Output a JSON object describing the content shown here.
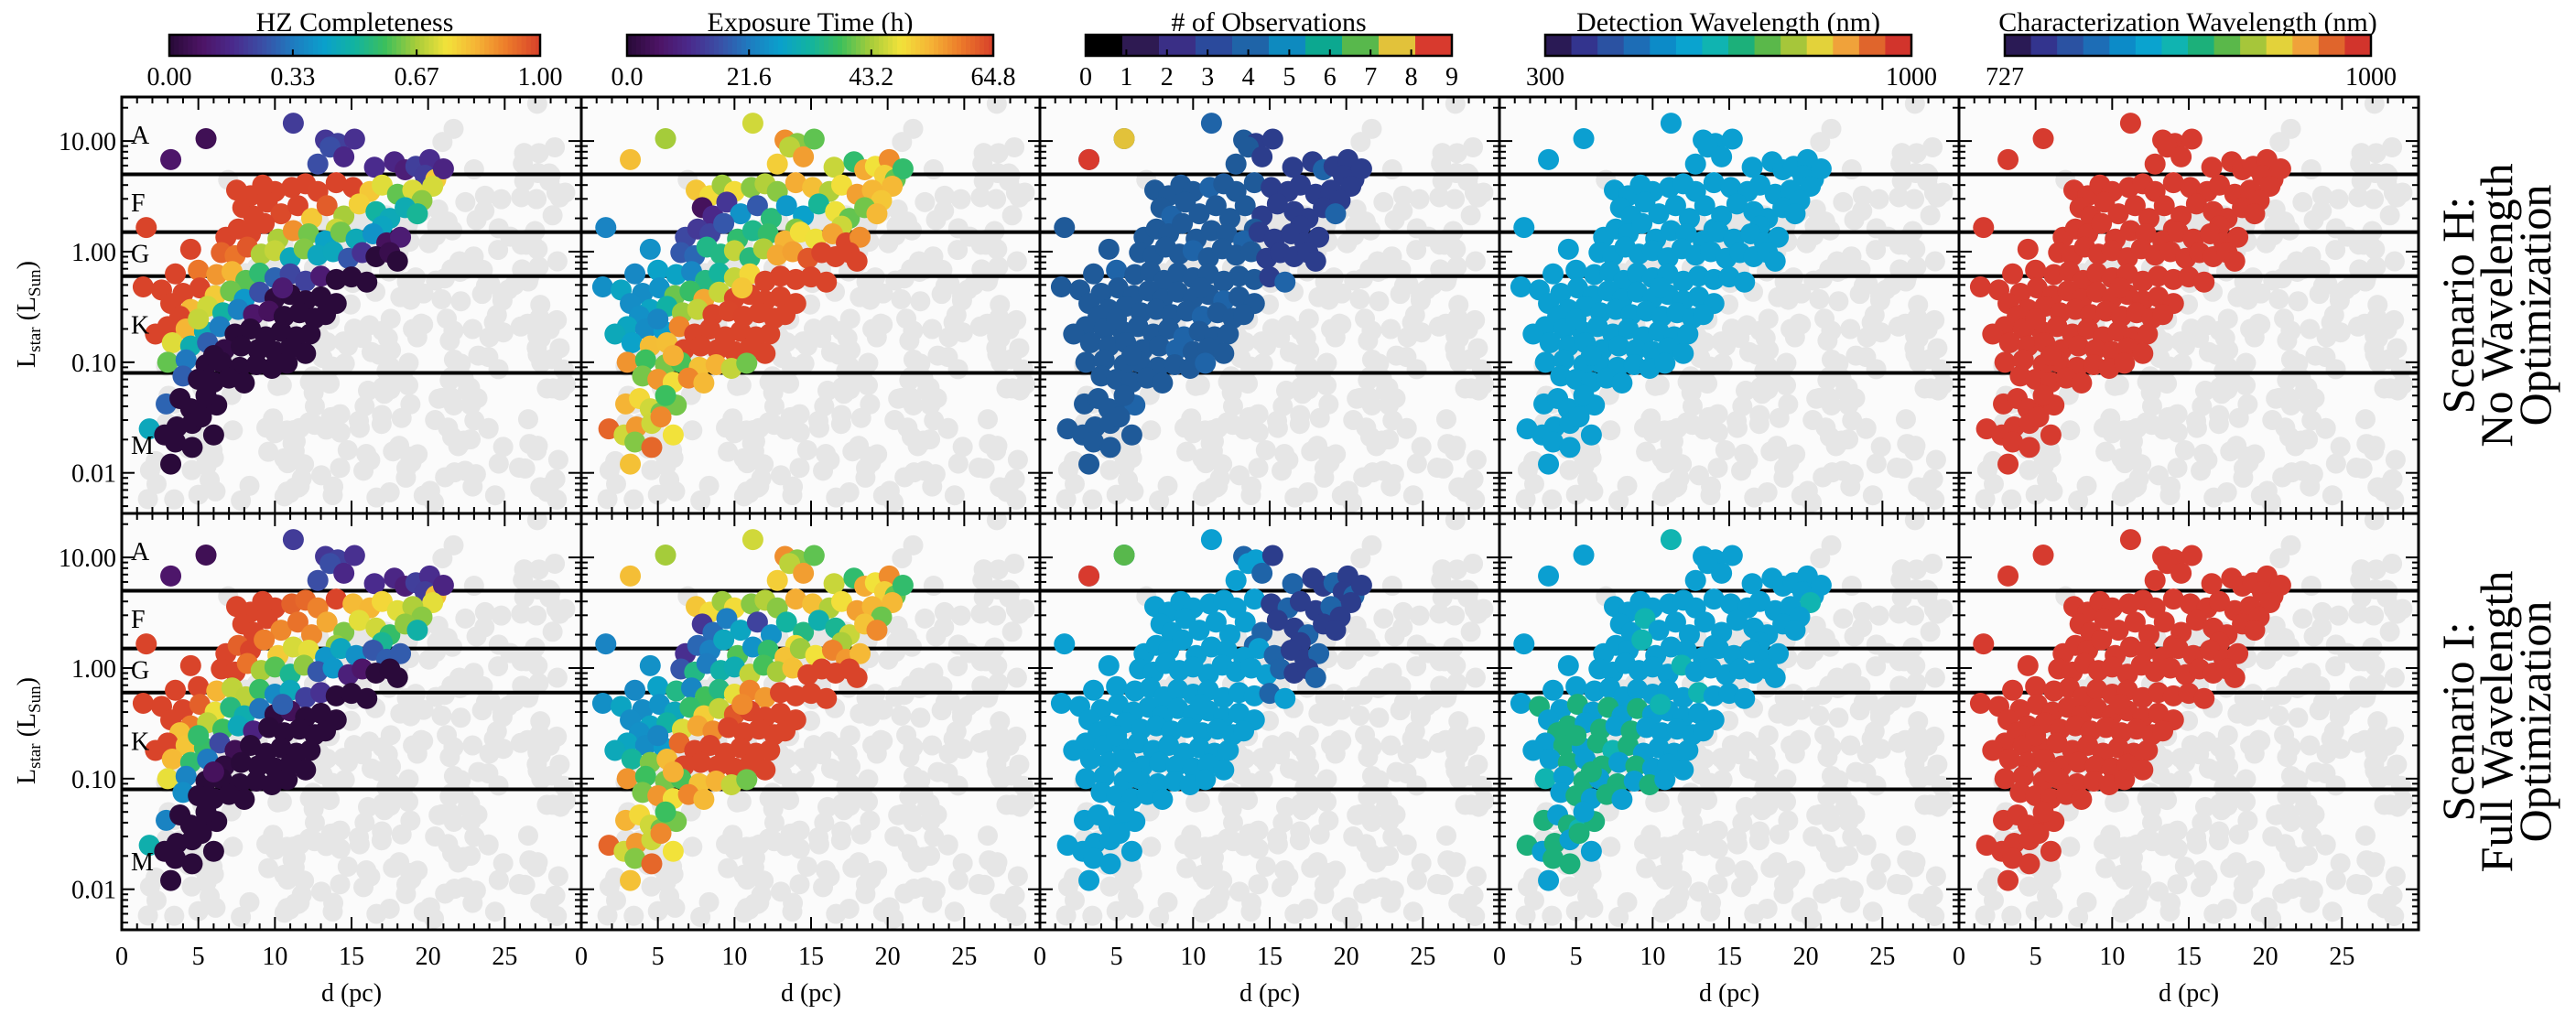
{
  "chart_data": {
    "type": "scatter",
    "x_axis": {
      "label": "d (pc)",
      "lim": [
        0,
        30
      ],
      "ticks": [
        0,
        5,
        10,
        15,
        20,
        25
      ]
    },
    "y_axis": {
      "label_main": "L",
      "label_sub1": "star",
      "label_mid": " (L",
      "label_sub2": "Sun",
      "label_end": ")",
      "scale": "log",
      "lim": [
        0.0043,
        25
      ],
      "ticks": [
        0.01,
        0.1,
        1.0,
        10.0
      ],
      "tick_labels": [
        "0.01",
        "0.10",
        "1.00",
        "10.00"
      ]
    },
    "spectral_boundaries": [
      5.0,
      1.5,
      0.6,
      0.08
    ],
    "spectral_labels": [
      {
        "text": "A",
        "lum": 11.5
      },
      {
        "text": "F",
        "lum": 2.8
      },
      {
        "text": "G",
        "lum": 0.97
      },
      {
        "text": "K",
        "lum": 0.22
      },
      {
        "text": "M",
        "lum": 0.018
      }
    ],
    "colorbars": [
      {
        "title": "HZ Completeness",
        "ticks": [
          "0.00",
          "0.33",
          "0.67",
          "1.00"
        ],
        "tick_pos": [
          0,
          0.333,
          0.667,
          1
        ],
        "colormap": "rainbow"
      },
      {
        "title": "Exposure Time (h)",
        "ticks": [
          "0.0",
          "21.6",
          "43.2",
          "64.8"
        ],
        "tick_pos": [
          0,
          0.333,
          0.667,
          1
        ],
        "colormap": "rainbow"
      },
      {
        "title": "# of Observations",
        "ticks": [
          "0",
          "1",
          "2",
          "3",
          "4",
          "5",
          "6",
          "7",
          "8",
          "9"
        ],
        "tick_pos": [
          0.0,
          0.111,
          0.222,
          0.333,
          0.444,
          0.556,
          0.667,
          0.778,
          0.889,
          1.0
        ],
        "colormap": "discrete10"
      },
      {
        "title": "Detection Wavelength (nm)",
        "ticks": [
          "300",
          "1000"
        ],
        "tick_pos": [
          0,
          1
        ],
        "colormap": "discrete14"
      },
      {
        "title": "Characterization Wavelength (nm)",
        "ticks": [
          "727",
          "1000"
        ],
        "tick_pos": [
          0,
          1
        ],
        "colormap": "discrete14"
      }
    ],
    "rows": [
      {
        "scenario_line1": "Scenario H:",
        "scenario_line2": "No Wavelength",
        "scenario_line3": "Optimization",
        "panel_colors": [
          null,
          null,
          "#1f5a99",
          "#0b9fd1",
          "#d63b2f"
        ]
      },
      {
        "scenario_line1": "Scenario I:",
        "scenario_line2": "Full Wavelength",
        "scenario_line3": "Optimization",
        "panel_colors": [
          null,
          null,
          "#0b9fd1",
          "#0b9fd1",
          "#d63b2f"
        ]
      }
    ],
    "colors": {
      "background_star": "#e6e6e6",
      "observed_default": "#0b9fd1",
      "char_default": "#d63b2f",
      "obs_dark": "#1f5a99",
      "obs_darker": "#2c3d8c"
    },
    "stars": [
      [
        11.2,
        14.5
      ],
      [
        5.5,
        10.5
      ],
      [
        3.2,
        6.8
      ],
      [
        13.3,
        10.2
      ],
      [
        14.1,
        9.5
      ],
      [
        13.6,
        8.8
      ],
      [
        14.5,
        7.2
      ],
      [
        15.2,
        10.4
      ],
      [
        12.8,
        6.2
      ],
      [
        16.5,
        5.8
      ],
      [
        17.8,
        6.5
      ],
      [
        18.5,
        5.5
      ],
      [
        19.2,
        5.9
      ],
      [
        20.1,
        6.8
      ],
      [
        19.8,
        4.9
      ],
      [
        20.5,
        4.5
      ],
      [
        21.0,
        5.6
      ],
      [
        20.3,
        3.9
      ],
      [
        7.5,
        3.6
      ],
      [
        8.4,
        3.2
      ],
      [
        9.2,
        4.0
      ],
      [
        10.0,
        3.5
      ],
      [
        11.1,
        3.8
      ],
      [
        12.0,
        4.1
      ],
      [
        12.8,
        3.5
      ],
      [
        14.0,
        4.2
      ],
      [
        15.1,
        3.8
      ],
      [
        16.2,
        3.5
      ],
      [
        17.0,
        4.0
      ],
      [
        18.0,
        3.3
      ],
      [
        19.0,
        3.6
      ],
      [
        19.6,
        2.9
      ],
      [
        7.9,
        2.5
      ],
      [
        8.6,
        2.1
      ],
      [
        9.5,
        2.8
      ],
      [
        10.4,
        2.2
      ],
      [
        11.5,
        2.6
      ],
      [
        12.4,
        2.0
      ],
      [
        13.4,
        2.6
      ],
      [
        14.5,
        2.1
      ],
      [
        15.5,
        2.7
      ],
      [
        16.6,
        2.3
      ],
      [
        17.5,
        2.0
      ],
      [
        18.5,
        2.5
      ],
      [
        19.3,
        2.2
      ],
      [
        14.0,
        1.6
      ],
      [
        17.0,
        1.7
      ],
      [
        1.6,
        1.65
      ],
      [
        6.8,
        1.35
      ],
      [
        7.6,
        1.6
      ],
      [
        8.4,
        1.45
      ],
      [
        9.3,
        1.8
      ],
      [
        10.2,
        1.3
      ],
      [
        11.2,
        1.55
      ],
      [
        12.2,
        1.45
      ],
      [
        13.3,
        1.25
      ],
      [
        14.3,
        1.5
      ],
      [
        15.3,
        1.3
      ],
      [
        16.4,
        1.45
      ],
      [
        17.3,
        1.2
      ],
      [
        18.2,
        1.35
      ],
      [
        4.5,
        1.05
      ],
      [
        6.5,
        0.98
      ],
      [
        7.4,
        0.92
      ],
      [
        8.2,
        1.1
      ],
      [
        9.1,
        0.95
      ],
      [
        10.0,
        1.02
      ],
      [
        11.0,
        0.88
      ],
      [
        11.9,
        1.06
      ],
      [
        12.8,
        0.93
      ],
      [
        13.8,
        1.0
      ],
      [
        14.8,
        0.87
      ],
      [
        15.7,
        0.98
      ],
      [
        16.6,
        0.9
      ],
      [
        17.5,
        0.98
      ],
      [
        18.0,
        0.82
      ],
      [
        3.5,
        0.63
      ],
      [
        5.0,
        0.68
      ],
      [
        6.2,
        0.62
      ],
      [
        7.2,
        0.66
      ],
      [
        8.1,
        0.55
      ],
      [
        9.0,
        0.64
      ],
      [
        10.0,
        0.58
      ],
      [
        11.0,
        0.63
      ],
      [
        12.0,
        0.54
      ],
      [
        13.0,
        0.6
      ],
      [
        14.0,
        0.56
      ],
      [
        15.0,
        0.59
      ],
      [
        16.0,
        0.53
      ],
      [
        1.4,
        0.48
      ],
      [
        2.6,
        0.45
      ],
      [
        4.0,
        0.42
      ],
      [
        5.1,
        0.47
      ],
      [
        6.1,
        0.4
      ],
      [
        7.1,
        0.44
      ],
      [
        8.0,
        0.37
      ],
      [
        9.0,
        0.43
      ],
      [
        10.0,
        0.38
      ],
      [
        11.0,
        0.41
      ],
      [
        12.0,
        0.36
      ],
      [
        13.0,
        0.39
      ],
      [
        14.0,
        0.34
      ],
      [
        10.5,
        0.47
      ],
      [
        3.2,
        0.34
      ],
      [
        4.5,
        0.3
      ],
      [
        5.6,
        0.32
      ],
      [
        6.6,
        0.28
      ],
      [
        7.6,
        0.3
      ],
      [
        8.6,
        0.27
      ],
      [
        9.6,
        0.29
      ],
      [
        10.6,
        0.26
      ],
      [
        11.6,
        0.28
      ],
      [
        12.6,
        0.25
      ],
      [
        13.3,
        0.27
      ],
      [
        3.8,
        0.26
      ],
      [
        3.0,
        0.21
      ],
      [
        4.2,
        0.2
      ],
      [
        5.4,
        0.19
      ],
      [
        6.4,
        0.21
      ],
      [
        7.4,
        0.18
      ],
      [
        8.4,
        0.2
      ],
      [
        9.4,
        0.17
      ],
      [
        10.4,
        0.19
      ],
      [
        11.4,
        0.17
      ],
      [
        12.3,
        0.18
      ],
      [
        2.2,
        0.18
      ],
      [
        5.0,
        0.245
      ],
      [
        3.3,
        0.15
      ],
      [
        4.5,
        0.14
      ],
      [
        5.6,
        0.15
      ],
      [
        6.7,
        0.13
      ],
      [
        7.8,
        0.14
      ],
      [
        8.9,
        0.13
      ],
      [
        10.0,
        0.125
      ],
      [
        11.0,
        0.135
      ],
      [
        12.0,
        0.12
      ],
      [
        3.0,
        0.1
      ],
      [
        4.2,
        0.105
      ],
      [
        5.5,
        0.095
      ],
      [
        6.5,
        0.1
      ],
      [
        7.7,
        0.09
      ],
      [
        8.8,
        0.095
      ],
      [
        9.8,
        0.088
      ],
      [
        10.8,
        0.098
      ],
      [
        6.0,
        0.115
      ],
      [
        4.0,
        0.075
      ],
      [
        5.0,
        0.07
      ],
      [
        6.0,
        0.066
      ],
      [
        7.0,
        0.072
      ],
      [
        8.0,
        0.065
      ],
      [
        2.9,
        0.042
      ],
      [
        3.8,
        0.047
      ],
      [
        4.5,
        0.038
      ],
      [
        5.2,
        0.035
      ],
      [
        6.2,
        0.041
      ],
      [
        5.5,
        0.05
      ],
      [
        1.8,
        0.025
      ],
      [
        2.8,
        0.022
      ],
      [
        3.6,
        0.026
      ],
      [
        4.6,
        0.028
      ],
      [
        3.5,
        0.019
      ],
      [
        3.2,
        0.012
      ],
      [
        5.2,
        0.032
      ],
      [
        6.0,
        0.022
      ],
      [
        4.6,
        0.017
      ]
    ]
  }
}
